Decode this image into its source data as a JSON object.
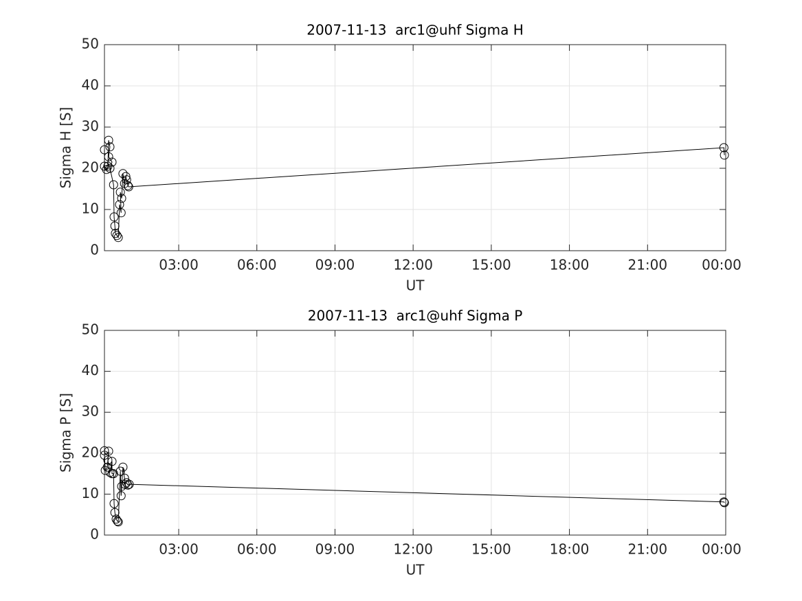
{
  "chart_data": [
    {
      "type": "line",
      "title": "2007-11-13  arc1@uhf Sigma H",
      "xlabel": "UT",
      "ylabel": "Sigma H [S]",
      "x": [
        0.15,
        0.15,
        0.23,
        0.28,
        0.31,
        0.36,
        0.31,
        0.44,
        0.36,
        0.5,
        0.52,
        0.55,
        0.57,
        0.63,
        0.68,
        0.73,
        0.79,
        0.76,
        0.81,
        0.86,
        0.92,
        0.97,
        1.0,
        1.05,
        1.08,
        23.93,
        23.95
      ],
      "values": [
        24.5,
        20.5,
        19.7,
        20.5,
        26.8,
        25.2,
        22.8,
        21.5,
        20,
        16,
        8.2,
        6,
        4.2,
        3.7,
        3.2,
        11.2,
        9.2,
        14.2,
        12.7,
        18.7,
        16.3,
        18,
        17.2,
        15.8,
        15.5,
        25,
        23.2
      ],
      "color": "#000000",
      "marker": "circle",
      "xlim": [
        0.15,
        24
      ],
      "ylim": [
        0,
        50
      ],
      "xticks": [
        {
          "value": 3,
          "label": "03:00"
        },
        {
          "value": 6,
          "label": "06:00"
        },
        {
          "value": 9,
          "label": "09:00"
        },
        {
          "value": 12,
          "label": "12:00"
        },
        {
          "value": 15,
          "label": "15:00"
        },
        {
          "value": 18,
          "label": "18:00"
        },
        {
          "value": 21,
          "label": "21:00"
        },
        {
          "value": 24,
          "label": "00:00"
        }
      ],
      "yticks": [
        0,
        10,
        20,
        30,
        40,
        50
      ],
      "grid": true
    },
    {
      "type": "line",
      "title": "2007-11-13  arc1@uhf Sigma P",
      "xlabel": "UT",
      "ylabel": "Sigma P [S]",
      "x": [
        0.15,
        0.15,
        0.18,
        0.26,
        0.31,
        0.28,
        0.36,
        0.44,
        0.44,
        0.5,
        0.52,
        0.55,
        0.6,
        0.65,
        0.68,
        0.76,
        0.79,
        0.81,
        0.86,
        0.92,
        0.94,
        1.0,
        1.05,
        1.1,
        23.93,
        23.95
      ],
      "values": [
        20.6,
        19.5,
        15.8,
        16.6,
        20.5,
        18.3,
        15.3,
        18,
        15,
        15,
        7.7,
        5.5,
        3.9,
        3.4,
        3.2,
        15.6,
        9.6,
        11.9,
        16.6,
        13.9,
        12.4,
        12.8,
        12.2,
        12.4,
        8.1,
        7.9
      ],
      "color": "#000000",
      "marker": "circle",
      "xlim": [
        0.15,
        24
      ],
      "ylim": [
        0,
        50
      ],
      "xticks": [
        {
          "value": 3,
          "label": "03:00"
        },
        {
          "value": 6,
          "label": "06:00"
        },
        {
          "value": 9,
          "label": "09:00"
        },
        {
          "value": 12,
          "label": "12:00"
        },
        {
          "value": 15,
          "label": "15:00"
        },
        {
          "value": 18,
          "label": "18:00"
        },
        {
          "value": 21,
          "label": "21:00"
        },
        {
          "value": 24,
          "label": "00:00"
        }
      ],
      "yticks": [
        0,
        10,
        20,
        30,
        40,
        50
      ],
      "grid": true
    }
  ]
}
